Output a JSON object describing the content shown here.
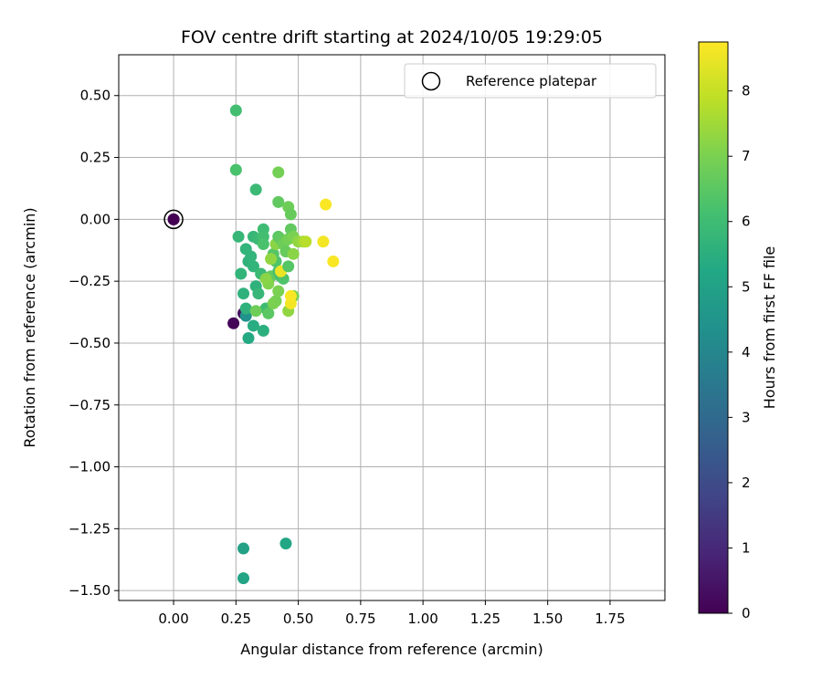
{
  "chart_data": {
    "type": "scatter",
    "title": "FOV centre drift starting at 2024/10/05 19:29:05",
    "xlabel": "Angular distance from reference (arcmin)",
    "ylabel": "Rotation from reference (arcmin)",
    "xlim": [
      -0.22,
      1.97
    ],
    "ylim": [
      -1.54,
      0.665
    ],
    "xticks": [
      0.0,
      0.25,
      0.5,
      0.75,
      1.0,
      1.25,
      1.5,
      1.75
    ],
    "xtick_labels": [
      "0.00",
      "0.25",
      "0.50",
      "0.75",
      "1.00",
      "1.25",
      "1.50",
      "1.75"
    ],
    "yticks": [
      0.5,
      0.25,
      0.0,
      -0.25,
      -0.5,
      -0.75,
      -1.0,
      -1.25,
      -1.5
    ],
    "ytick_labels": [
      "0.50",
      "0.25",
      "0.00",
      "−0.25",
      "−0.50",
      "−0.75",
      "−1.00",
      "−1.25",
      "−1.50"
    ],
    "grid": true,
    "legend": {
      "placement": "top-right",
      "entries": [
        "Reference platepar"
      ]
    },
    "reference_point": {
      "x": 0.0,
      "y": 0.0,
      "hours": 0.0
    },
    "colorbar": {
      "label": "Hours from first FF file",
      "min": 0,
      "max": 8.75,
      "ticks": [
        0,
        1,
        2,
        3,
        4,
        5,
        6,
        7,
        8
      ],
      "tick_labels": [
        "0",
        "1",
        "2",
        "3",
        "4",
        "5",
        "6",
        "7",
        "8"
      ],
      "colormap": "viridis"
    },
    "points": [
      {
        "x": 0.0,
        "y": 0.0,
        "hours": 0.0
      },
      {
        "x": 0.24,
        "y": -0.42,
        "hours": 0.1
      },
      {
        "x": 0.28,
        "y": -0.38,
        "hours": 0.3
      },
      {
        "x": 0.29,
        "y": -0.39,
        "hours": 4.4
      },
      {
        "x": 0.28,
        "y": -1.33,
        "hours": 5.0
      },
      {
        "x": 0.28,
        "y": -1.45,
        "hours": 5.1
      },
      {
        "x": 0.45,
        "y": -1.31,
        "hours": 5.2
      },
      {
        "x": 0.3,
        "y": -0.48,
        "hours": 5.3
      },
      {
        "x": 0.32,
        "y": -0.43,
        "hours": 5.4
      },
      {
        "x": 0.36,
        "y": -0.45,
        "hours": 5.5
      },
      {
        "x": 0.29,
        "y": -0.36,
        "hours": 5.6
      },
      {
        "x": 0.28,
        "y": -0.3,
        "hours": 5.6
      },
      {
        "x": 0.27,
        "y": -0.22,
        "hours": 5.7
      },
      {
        "x": 0.26,
        "y": -0.07,
        "hours": 5.8
      },
      {
        "x": 0.29,
        "y": -0.12,
        "hours": 5.7
      },
      {
        "x": 0.3,
        "y": -0.17,
        "hours": 5.6
      },
      {
        "x": 0.31,
        "y": -0.15,
        "hours": 5.7
      },
      {
        "x": 0.32,
        "y": -0.19,
        "hours": 5.7
      },
      {
        "x": 0.33,
        "y": -0.27,
        "hours": 5.6
      },
      {
        "x": 0.34,
        "y": -0.3,
        "hours": 5.8
      },
      {
        "x": 0.35,
        "y": -0.22,
        "hours": 5.9
      },
      {
        "x": 0.32,
        "y": -0.07,
        "hours": 5.8
      },
      {
        "x": 0.34,
        "y": -0.08,
        "hours": 5.9
      },
      {
        "x": 0.36,
        "y": -0.04,
        "hours": 6.0
      },
      {
        "x": 0.36,
        "y": -0.07,
        "hours": 6.1
      },
      {
        "x": 0.36,
        "y": -0.1,
        "hours": 6.2
      },
      {
        "x": 0.33,
        "y": 0.12,
        "hours": 5.9
      },
      {
        "x": 0.25,
        "y": 0.44,
        "hours": 6.1
      },
      {
        "x": 0.25,
        "y": 0.2,
        "hours": 6.2
      },
      {
        "x": 0.37,
        "y": -0.36,
        "hours": 6.0
      },
      {
        "x": 0.38,
        "y": -0.38,
        "hours": 6.5
      },
      {
        "x": 0.33,
        "y": -0.37,
        "hours": 6.8
      },
      {
        "x": 0.39,
        "y": -0.23,
        "hours": 6.6
      },
      {
        "x": 0.41,
        "y": -0.17,
        "hours": 6.3
      },
      {
        "x": 0.4,
        "y": -0.14,
        "hours": 6.4
      },
      {
        "x": 0.42,
        "y": -0.21,
        "hours": 6.2
      },
      {
        "x": 0.43,
        "y": -0.23,
        "hours": 6.1
      },
      {
        "x": 0.44,
        "y": -0.24,
        "hours": 6.3
      },
      {
        "x": 0.41,
        "y": -0.33,
        "hours": 6.9
      },
      {
        "x": 0.4,
        "y": -0.34,
        "hours": 7.0
      },
      {
        "x": 0.38,
        "y": -0.26,
        "hours": 7.1
      },
      {
        "x": 0.37,
        "y": -0.24,
        "hours": 7.2
      },
      {
        "x": 0.39,
        "y": -0.16,
        "hours": 7.3
      },
      {
        "x": 0.41,
        "y": -0.1,
        "hours": 7.2
      },
      {
        "x": 0.42,
        "y": -0.29,
        "hours": 7.0
      },
      {
        "x": 0.43,
        "y": -0.21,
        "hours": 8.5
      },
      {
        "x": 0.42,
        "y": 0.07,
        "hours": 6.6
      },
      {
        "x": 0.42,
        "y": 0.19,
        "hours": 6.9
      },
      {
        "x": 0.42,
        "y": -0.07,
        "hours": 6.5
      },
      {
        "x": 0.43,
        "y": -0.08,
        "hours": 6.6
      },
      {
        "x": 0.44,
        "y": -0.1,
        "hours": 6.8
      },
      {
        "x": 0.45,
        "y": -0.13,
        "hours": 6.7
      },
      {
        "x": 0.46,
        "y": -0.19,
        "hours": 6.4
      },
      {
        "x": 0.46,
        "y": -0.08,
        "hours": 6.9
      },
      {
        "x": 0.46,
        "y": 0.05,
        "hours": 6.8
      },
      {
        "x": 0.47,
        "y": 0.02,
        "hours": 6.7
      },
      {
        "x": 0.47,
        "y": -0.04,
        "hours": 6.6
      },
      {
        "x": 0.48,
        "y": -0.07,
        "hours": 7.0
      },
      {
        "x": 0.48,
        "y": -0.14,
        "hours": 7.2
      },
      {
        "x": 0.46,
        "y": -0.37,
        "hours": 7.3
      },
      {
        "x": 0.48,
        "y": -0.31,
        "hours": 7.0
      },
      {
        "x": 0.47,
        "y": -0.34,
        "hours": 8.6
      },
      {
        "x": 0.47,
        "y": -0.31,
        "hours": 8.7
      },
      {
        "x": 0.5,
        "y": -0.09,
        "hours": 7.3
      },
      {
        "x": 0.52,
        "y": -0.09,
        "hours": 7.5
      },
      {
        "x": 0.53,
        "y": -0.09,
        "hours": 7.8
      },
      {
        "x": 0.6,
        "y": -0.09,
        "hours": 8.6
      },
      {
        "x": 0.61,
        "y": 0.06,
        "hours": 8.7
      },
      {
        "x": 0.64,
        "y": -0.17,
        "hours": 8.7
      }
    ]
  }
}
